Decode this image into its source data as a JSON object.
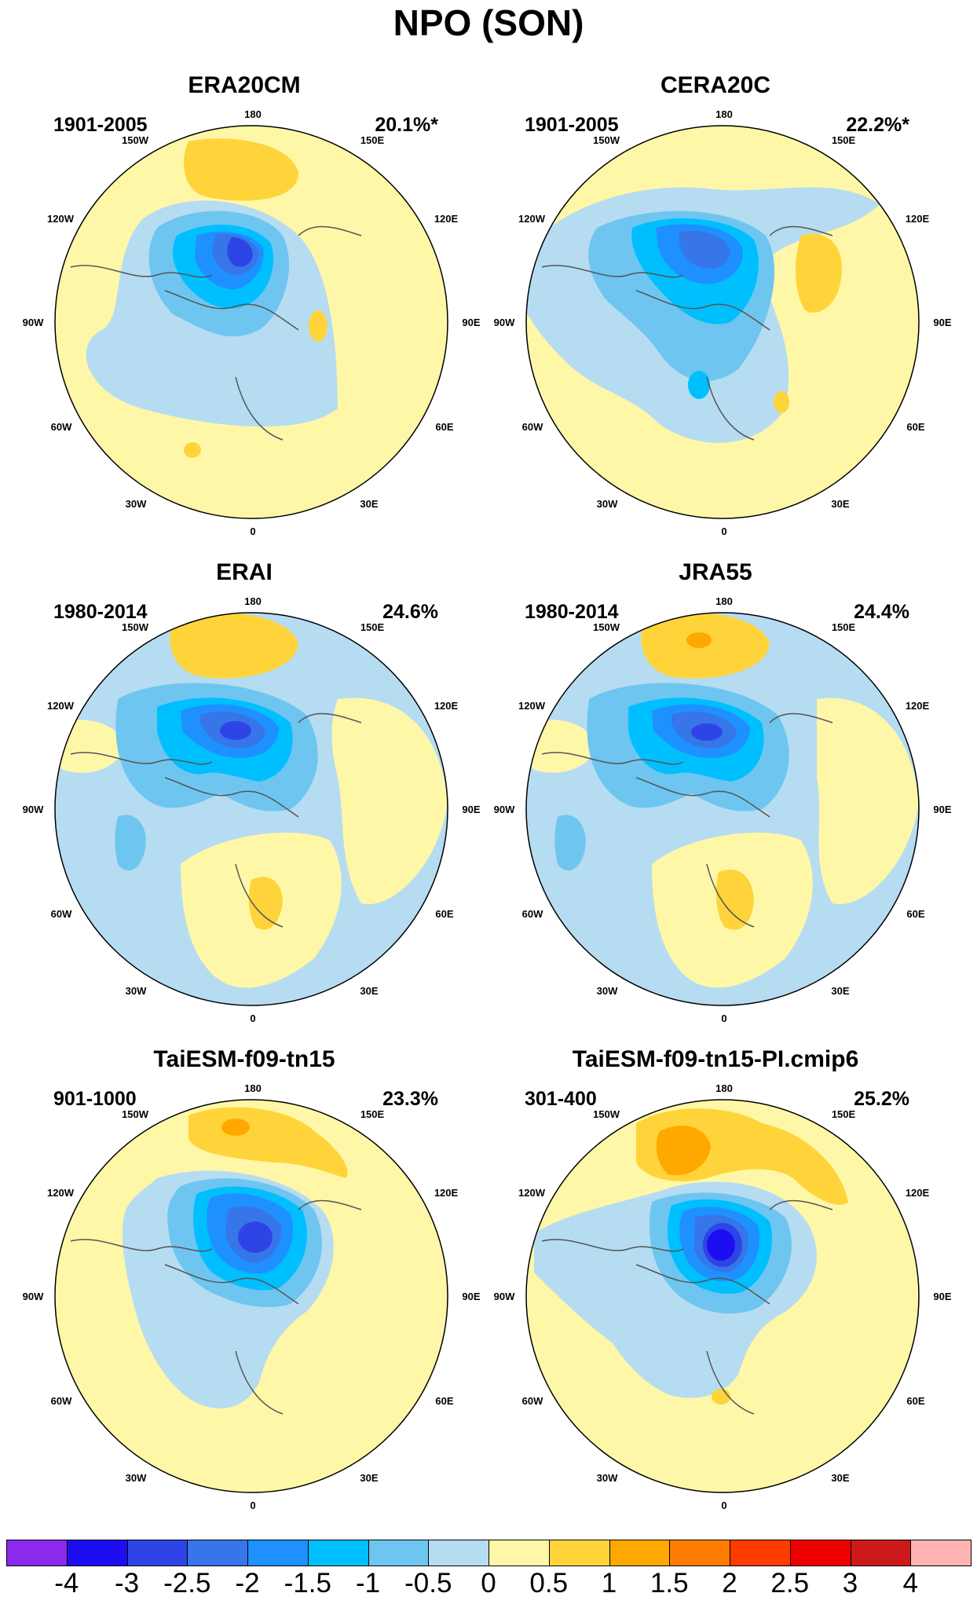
{
  "figure": {
    "title": "NPO (SON)",
    "longitude_labels": [
      "180",
      "150E",
      "120E",
      "90E",
      "60E",
      "30E",
      "0",
      "30W",
      "60W",
      "90W",
      "120W",
      "150W"
    ],
    "colorbar": {
      "levels": [
        "-4",
        "-3",
        "-2.5",
        "-2",
        "-1.5",
        "-1",
        "-0.5",
        "0",
        "0.5",
        "1",
        "1.5",
        "2",
        "2.5",
        "3",
        "4"
      ],
      "colors": [
        "#8b2aed",
        "#1c0ef0",
        "#2f44e6",
        "#3676e8",
        "#1e90ff",
        "#00bfff",
        "#6ec6f0",
        "#b6dcf2",
        "#fff7a8",
        "#ffd43a",
        "#ffa800",
        "#ff7c00",
        "#ff3c00",
        "#ee0000",
        "#cc1a1a",
        "#ffb3b3"
      ]
    },
    "panels": [
      {
        "title": "ERA20CM",
        "period": "1901-2005",
        "variance": "20.1%*"
      },
      {
        "title": "CERA20C",
        "period": "1901-2005",
        "variance": "22.2%*"
      },
      {
        "title": "ERAI",
        "period": "1980-2014",
        "variance": "24.6%"
      },
      {
        "title": "JRA55",
        "period": "1980-2014",
        "variance": "24.4%"
      },
      {
        "title": "TaiESM-f09-tn15",
        "period": "901-1000",
        "variance": "23.3%"
      },
      {
        "title": "TaiESM-f09-tn15-PI.cmip6",
        "period": "301-400",
        "variance": "25.2%"
      }
    ]
  }
}
